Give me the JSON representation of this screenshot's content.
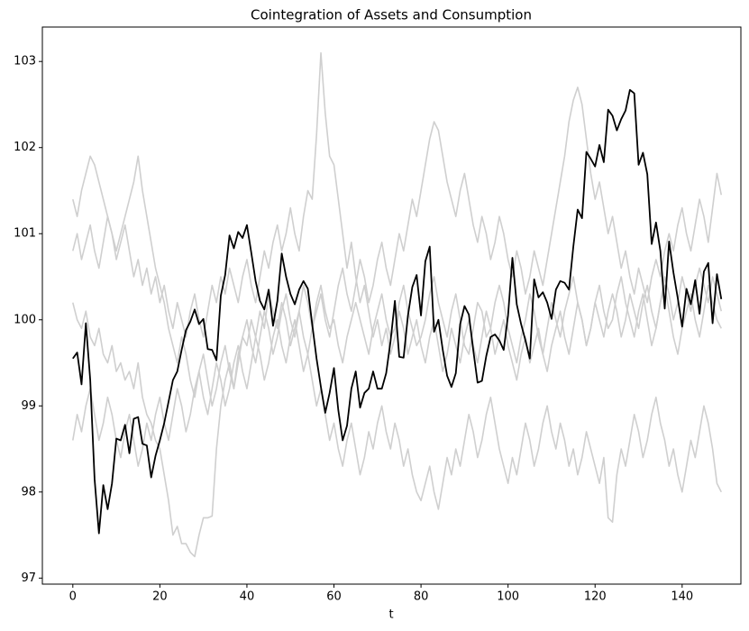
{
  "chart_data": {
    "type": "line",
    "title": "Cointegration of Assets and Consumption",
    "xlabel": "t",
    "x": [
      0,
      1,
      2,
      3,
      4,
      5,
      6,
      7,
      8,
      9,
      10,
      11,
      12,
      13,
      14,
      15,
      16,
      17,
      18,
      19,
      20,
      21,
      22,
      23,
      24,
      25,
      26,
      27,
      28,
      29,
      30,
      31,
      32,
      33,
      34,
      35,
      36,
      37,
      38,
      39,
      40,
      41,
      42,
      43,
      44,
      45,
      46,
      47,
      48,
      49,
      50,
      51,
      52,
      53,
      54,
      55,
      56,
      57,
      58,
      59,
      60,
      61,
      62,
      63,
      64,
      65,
      66,
      67,
      68,
      69,
      70,
      71,
      72,
      73,
      74,
      75,
      76,
      77,
      78,
      79,
      80,
      81,
      82,
      83,
      84,
      85,
      86,
      87,
      88,
      89,
      90,
      91,
      92,
      93,
      94,
      95,
      96,
      97,
      98,
      99,
      100,
      101,
      102,
      103,
      104,
      105,
      106,
      107,
      108,
      109,
      110,
      111,
      112,
      113,
      114,
      115,
      116,
      117,
      118,
      119,
      120,
      121,
      122,
      123,
      124,
      125,
      126,
      127,
      128,
      129,
      130,
      131,
      132,
      133,
      134,
      135,
      136,
      137,
      138,
      139,
      140,
      141,
      142,
      143,
      144,
      145,
      146,
      147,
      148,
      149
    ],
    "xlim": [
      -7,
      153.5
    ],
    "ylim": [
      96.93,
      103.4
    ],
    "xticks": [
      0,
      20,
      40,
      60,
      80,
      100,
      120,
      140
    ],
    "yticks": [
      97,
      98,
      99,
      100,
      101,
      102,
      103
    ],
    "grid": false,
    "series": [
      {
        "color": "#cfcfcf",
        "values": [
          100.2,
          100.0,
          99.9,
          100.1,
          99.8,
          99.7,
          99.9,
          99.6,
          99.5,
          99.7,
          99.4,
          99.5,
          99.3,
          99.4,
          99.2,
          99.5,
          99.1,
          98.9,
          98.8,
          98.6,
          98.5,
          98.2,
          97.9,
          97.5,
          97.6,
          97.4,
          97.4,
          97.3,
          97.25,
          97.5,
          97.7,
          97.7,
          97.72,
          98.5,
          99.0,
          99.3,
          99.5,
          99.2,
          99.6,
          99.8,
          99.7,
          100.0,
          99.8,
          100.1,
          99.9,
          100.3,
          100.1,
          99.9,
          100.2,
          100.0,
          99.7,
          99.9,
          100.1,
          99.8,
          99.6,
          99.9,
          100.2,
          100.4,
          100.1,
          99.9,
          100.0,
          99.7,
          99.5,
          99.8,
          100.0,
          100.2,
          100.0,
          99.8,
          99.6,
          99.9,
          100.1,
          100.3,
          100.0,
          99.8,
          99.9,
          100.2,
          100.4,
          100.1,
          99.9,
          99.7,
          99.8,
          100.0,
          100.3,
          100.5,
          100.2,
          100.0,
          99.8,
          100.1,
          100.3,
          100.0,
          99.7,
          99.6,
          99.9,
          100.2,
          100.1,
          99.8,
          99.9,
          100.2,
          100.4,
          100.2,
          99.9,
          99.7,
          99.5,
          99.8,
          100.0,
          100.3,
          100.1,
          99.8,
          99.6,
          99.9,
          100.2,
          100.0,
          99.8,
          100.1,
          100.3,
          100.5,
          100.2,
          100.0,
          99.7,
          99.9,
          100.2,
          100.4,
          100.1,
          99.9,
          100.0,
          100.3,
          100.5,
          100.2,
          100.0,
          99.8,
          100.1,
          100.3,
          100.0,
          99.7,
          99.9,
          100.2,
          100.4,
          100.1,
          99.8,
          99.6,
          99.9,
          100.1,
          100.3,
          100.0,
          99.8,
          100.1,
          100.4,
          100.2,
          100.0,
          99.9
        ]
      },
      {
        "color": "#cfcfcf",
        "values": [
          100.8,
          101.0,
          100.7,
          100.9,
          101.1,
          100.8,
          100.6,
          100.9,
          101.2,
          101.0,
          100.7,
          100.9,
          101.1,
          100.8,
          100.5,
          100.7,
          100.4,
          100.6,
          100.3,
          100.5,
          100.2,
          100.4,
          100.1,
          99.9,
          100.2,
          100.0,
          99.8,
          100.1,
          100.3,
          100.0,
          99.8,
          100.1,
          100.4,
          100.2,
          100.5,
          100.3,
          100.6,
          100.4,
          100.2,
          100.5,
          100.7,
          100.4,
          100.2,
          100.5,
          100.8,
          100.6,
          100.9,
          101.1,
          100.8,
          101.0,
          101.3,
          101.0,
          100.8,
          101.2,
          101.5,
          101.4,
          102.15,
          103.1,
          102.4,
          101.9,
          101.8,
          101.4,
          101.0,
          100.6,
          100.9,
          100.5,
          100.2,
          100.4,
          100.1,
          99.8,
          100.0,
          99.7,
          99.9,
          99.6,
          99.8,
          100.1,
          99.9,
          99.6,
          99.8,
          100.0,
          99.7,
          99.5,
          99.8,
          100.0,
          99.7,
          99.4,
          99.6,
          99.9,
          99.7,
          99.5,
          99.8,
          100.0,
          99.7,
          99.5,
          99.8,
          100.1,
          99.9,
          99.6,
          99.8,
          100.0,
          99.7,
          99.5,
          99.3,
          99.6,
          99.8,
          99.5,
          99.7,
          99.9,
          99.6,
          99.4,
          99.7,
          99.9,
          100.1,
          99.8,
          99.6,
          99.9,
          100.2,
          100.0,
          99.7,
          99.9,
          100.2,
          100.0,
          99.8,
          100.1,
          100.3,
          100.1,
          99.8,
          100.0,
          100.3,
          100.1,
          99.9,
          100.2,
          100.4,
          100.1,
          99.9,
          100.2,
          100.5,
          100.3,
          100.0,
          100.2,
          100.5,
          100.3,
          100.1,
          100.4,
          100.6,
          100.4,
          100.2,
          100.5,
          100.3,
          100.1
        ]
      },
      {
        "color": "#cfcfcf",
        "values": [
          101.4,
          101.2,
          101.5,
          101.7,
          101.9,
          101.8,
          101.6,
          101.4,
          101.2,
          101.0,
          100.8,
          101.0,
          101.2,
          101.4,
          101.6,
          101.9,
          101.5,
          101.2,
          100.9,
          100.6,
          100.4,
          100.2,
          99.9,
          99.7,
          99.5,
          99.8,
          99.6,
          99.3,
          99.1,
          99.4,
          99.6,
          99.3,
          99.0,
          99.2,
          99.5,
          99.7,
          99.4,
          99.2,
          99.5,
          99.8,
          100.0,
          99.7,
          99.5,
          99.8,
          100.1,
          99.9,
          99.6,
          99.8,
          100.1,
          100.3,
          100.0,
          99.8,
          100.1,
          100.4,
          100.2,
          99.9,
          100.1,
          100.3,
          100.0,
          99.8,
          100.1,
          100.4,
          100.6,
          100.3,
          100.1,
          100.4,
          100.7,
          100.5,
          100.2,
          100.4,
          100.7,
          100.9,
          100.6,
          100.4,
          100.7,
          101.0,
          100.8,
          101.1,
          101.4,
          101.2,
          101.5,
          101.8,
          102.1,
          102.3,
          102.2,
          101.9,
          101.6,
          101.4,
          101.2,
          101.5,
          101.7,
          101.4,
          101.1,
          100.9,
          101.2,
          101.0,
          100.7,
          100.9,
          101.2,
          101.0,
          100.7,
          100.5,
          100.8,
          100.6,
          100.3,
          100.5,
          100.8,
          100.6,
          100.4,
          100.7,
          101.0,
          101.3,
          101.6,
          101.9,
          102.3,
          102.55,
          102.7,
          102.5,
          102.1,
          101.7,
          101.4,
          101.6,
          101.3,
          101.0,
          101.2,
          100.9,
          100.6,
          100.8,
          100.5,
          100.3,
          100.6,
          100.4,
          100.2,
          100.5,
          100.7,
          100.5,
          100.8,
          101.0,
          100.8,
          101.1,
          101.3,
          101.0,
          100.8,
          101.1,
          101.4,
          101.2,
          100.9,
          101.3,
          101.7,
          101.45
        ]
      },
      {
        "color": "#cfcfcf",
        "values": [
          98.6,
          98.9,
          98.7,
          99.0,
          99.2,
          98.9,
          98.6,
          98.8,
          99.1,
          98.9,
          98.6,
          98.4,
          98.7,
          98.9,
          98.6,
          98.3,
          98.5,
          98.8,
          98.6,
          98.9,
          99.1,
          98.8,
          98.6,
          98.9,
          99.2,
          99.0,
          98.7,
          98.9,
          99.2,
          99.4,
          99.1,
          98.9,
          99.2,
          99.5,
          99.3,
          99.0,
          99.2,
          99.5,
          99.7,
          99.4,
          99.2,
          99.5,
          99.8,
          99.6,
          99.3,
          99.5,
          99.8,
          100.0,
          99.7,
          99.5,
          99.8,
          100.0,
          99.7,
          99.4,
          99.6,
          99.3,
          99.0,
          99.2,
          98.9,
          98.6,
          98.8,
          98.5,
          98.3,
          98.6,
          98.8,
          98.5,
          98.2,
          98.4,
          98.7,
          98.5,
          98.8,
          99.0,
          98.7,
          98.5,
          98.8,
          98.6,
          98.3,
          98.5,
          98.2,
          98.0,
          97.9,
          98.1,
          98.3,
          98.0,
          97.8,
          98.1,
          98.4,
          98.2,
          98.5,
          98.3,
          98.6,
          98.9,
          98.7,
          98.4,
          98.6,
          98.9,
          99.1,
          98.8,
          98.5,
          98.3,
          98.1,
          98.4,
          98.2,
          98.5,
          98.8,
          98.6,
          98.3,
          98.5,
          98.8,
          99.0,
          98.7,
          98.5,
          98.8,
          98.6,
          98.3,
          98.5,
          98.2,
          98.4,
          98.7,
          98.5,
          98.3,
          98.1,
          98.4,
          97.7,
          97.65,
          98.2,
          98.5,
          98.3,
          98.6,
          98.9,
          98.7,
          98.4,
          98.6,
          98.9,
          99.1,
          98.8,
          98.6,
          98.3,
          98.5,
          98.2,
          98.0,
          98.3,
          98.6,
          98.4,
          98.7,
          99.0,
          98.8,
          98.5,
          98.1,
          98.0
        ]
      },
      {
        "color": "#000000",
        "values": [
          99.55,
          99.62,
          99.25,
          99.96,
          99.3,
          98.15,
          97.52,
          98.08,
          97.8,
          98.1,
          98.62,
          98.6,
          98.78,
          98.45,
          98.85,
          98.87,
          98.56,
          98.54,
          98.17,
          98.42,
          98.6,
          98.8,
          99.05,
          99.3,
          99.4,
          99.65,
          99.88,
          99.98,
          100.12,
          99.95,
          100.01,
          99.66,
          99.65,
          99.53,
          100.28,
          100.52,
          100.98,
          100.83,
          101.02,
          100.95,
          101.1,
          100.78,
          100.45,
          100.22,
          100.12,
          100.35,
          99.93,
          100.22,
          100.77,
          100.5,
          100.3,
          100.18,
          100.35,
          100.45,
          100.36,
          99.95,
          99.55,
          99.22,
          98.92,
          99.15,
          99.44,
          98.95,
          98.6,
          98.77,
          99.2,
          99.4,
          98.98,
          99.15,
          99.2,
          99.4,
          99.2,
          99.2,
          99.38,
          99.75,
          100.22,
          99.57,
          99.56,
          100.05,
          100.38,
          100.52,
          100.05,
          100.68,
          100.85,
          99.86,
          100.0,
          99.65,
          99.35,
          99.22,
          99.38,
          99.95,
          100.16,
          100.06,
          99.65,
          99.27,
          99.29,
          99.58,
          99.8,
          99.83,
          99.76,
          99.65,
          100.05,
          100.72,
          100.18,
          99.95,
          99.76,
          99.55,
          100.47,
          100.26,
          100.32,
          100.2,
          100.01,
          100.35,
          100.45,
          100.43,
          100.35,
          100.85,
          101.28,
          101.18,
          101.95,
          101.87,
          101.78,
          102.03,
          101.83,
          102.44,
          102.37,
          102.2,
          102.33,
          102.43,
          102.67,
          102.63,
          101.8,
          101.94,
          101.69,
          100.88,
          101.13,
          100.8,
          100.13,
          100.91,
          100.55,
          100.25,
          99.92,
          100.36,
          100.18,
          100.46,
          100.07,
          100.56,
          100.66,
          99.96,
          100.53,
          100.24
        ]
      }
    ]
  }
}
